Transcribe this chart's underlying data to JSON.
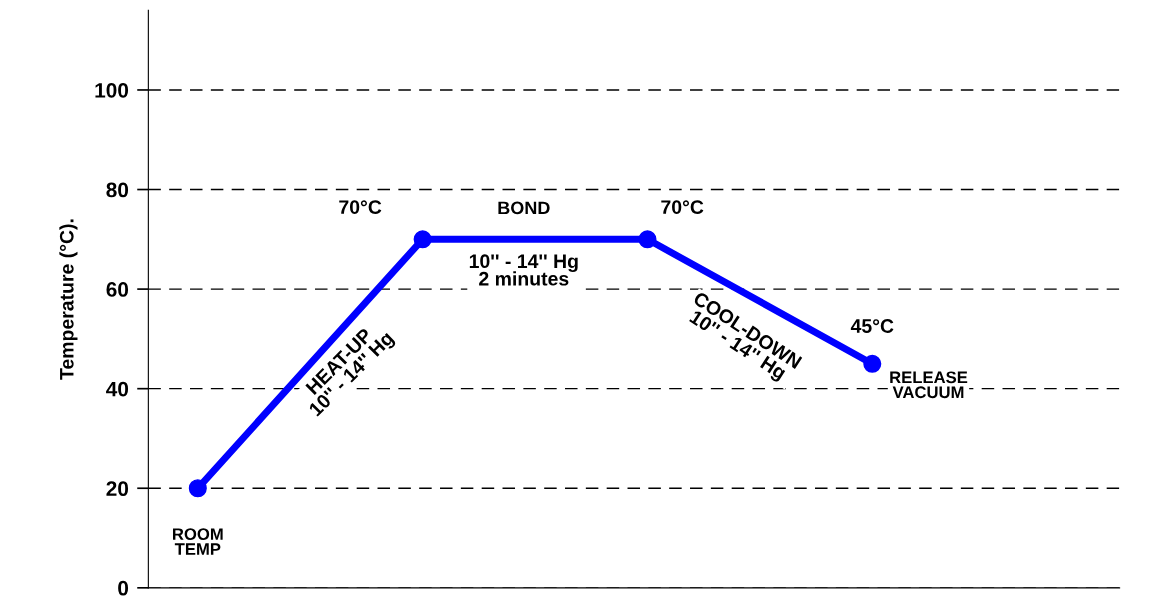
{
  "chart_data": {
    "type": "line",
    "ylabel": "Temperature (°C).",
    "categories": [
      null,
      null,
      null,
      null
    ],
    "series": [
      {
        "color": "#0000ff",
        "values": [
          20,
          70,
          70,
          45
        ],
        "value_labels": [
          null,
          "70°C",
          "70°C",
          "45°C"
        ]
      }
    ],
    "ylim": [
      0,
      116
    ],
    "yticks": [
      0,
      20,
      40,
      60,
      80,
      100
    ],
    "grid": "y",
    "marker": "circle",
    "line_style": "solid",
    "annotations": [
      "ROOM\nTEMP",
      "HEAT-UP\n10'' - 14'' Hg",
      "BOND",
      "10'' - 14'' Hg\n2 minutes",
      "COOL-DOWN\n10'' - 14'' Hg",
      "RELEASE\nVACUUM"
    ]
  }
}
